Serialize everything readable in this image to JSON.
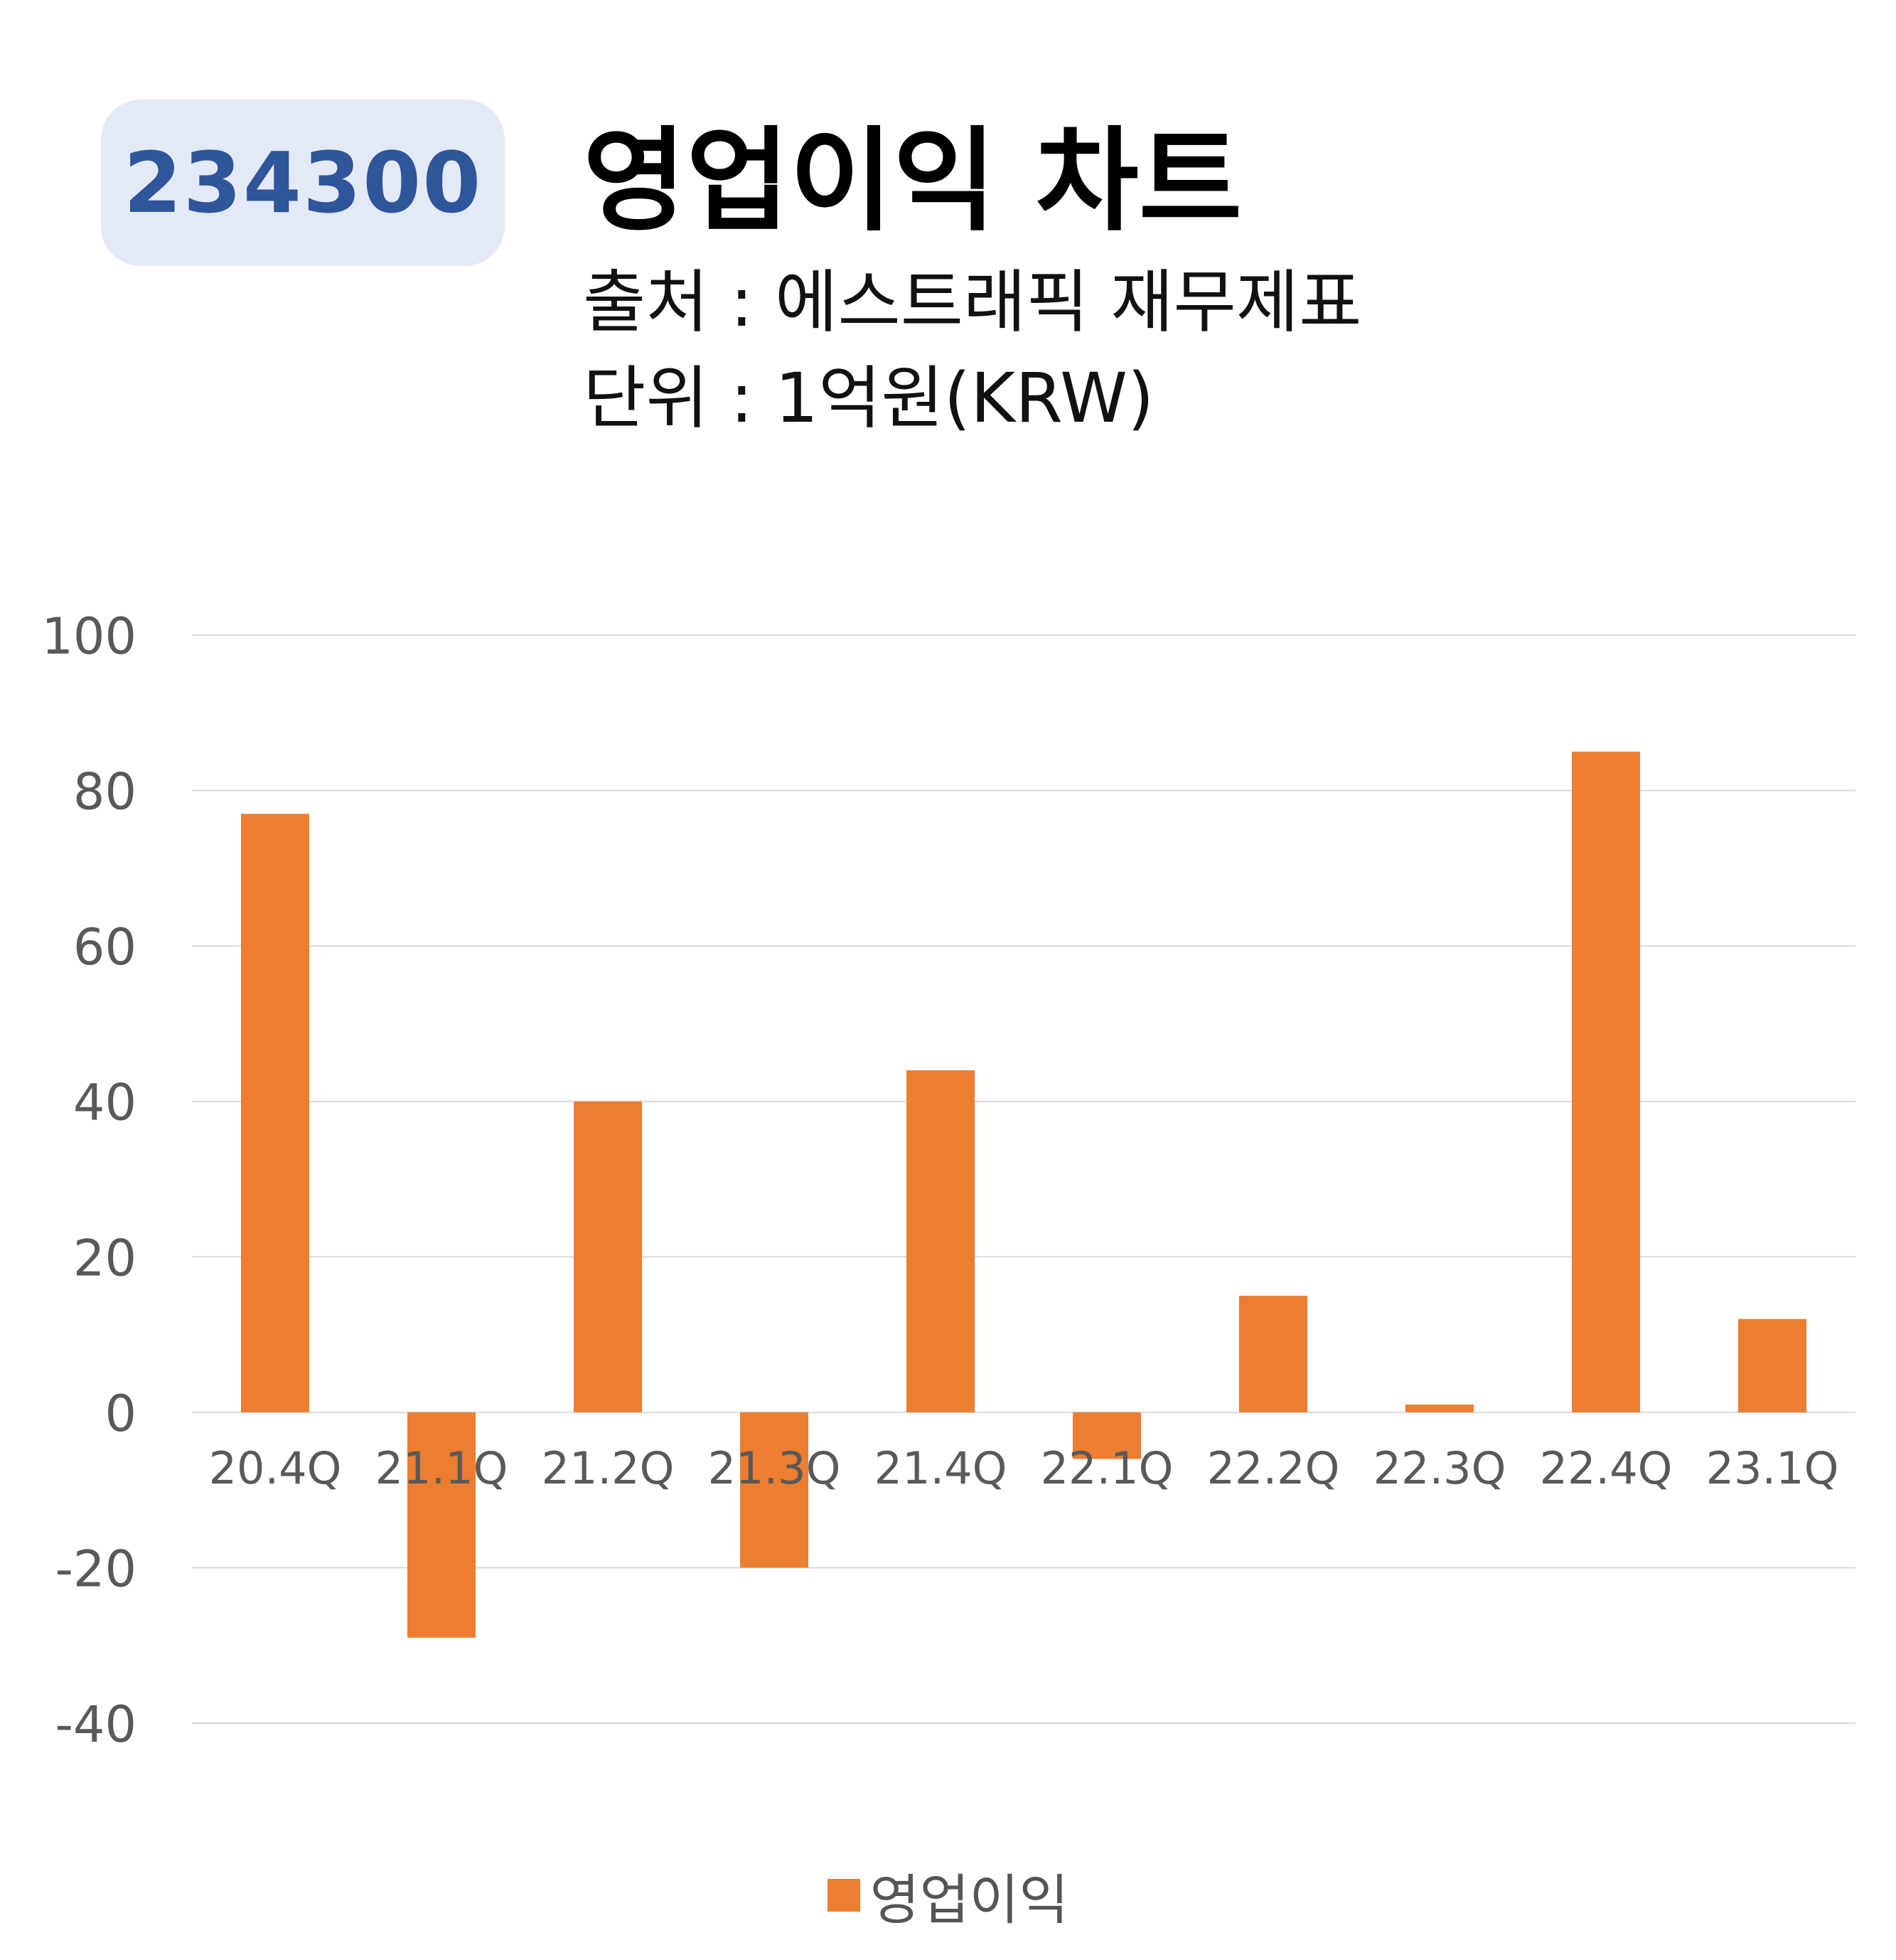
{
  "header": {
    "ticker": "234300",
    "title": "영업이익 차트",
    "source": "출처 : 에스트래픽 재무제표",
    "unit": "단위 : 1억원(KRW)"
  },
  "colors": {
    "bar": "#ed7d31",
    "badge_bg": "#e3e9f6",
    "badge_text": "#2f559a",
    "grid": "#d9d9d9",
    "tick_text": "#595959"
  },
  "chart_data": {
    "type": "bar",
    "categories": [
      "20.4Q",
      "21.1Q",
      "21.2Q",
      "21.3Q",
      "21.4Q",
      "22.1Q",
      "22.2Q",
      "22.3Q",
      "22.4Q",
      "23.1Q"
    ],
    "series": [
      {
        "name": "영업이익",
        "values": [
          77,
          -29,
          40,
          -20,
          44,
          -6,
          15,
          1,
          85,
          12
        ]
      }
    ],
    "ylim": [
      -40,
      100
    ],
    "yticks": [
      100,
      80,
      60,
      40,
      20,
      0,
      -20,
      -40
    ],
    "grid": true,
    "legend": "bottom-center"
  }
}
